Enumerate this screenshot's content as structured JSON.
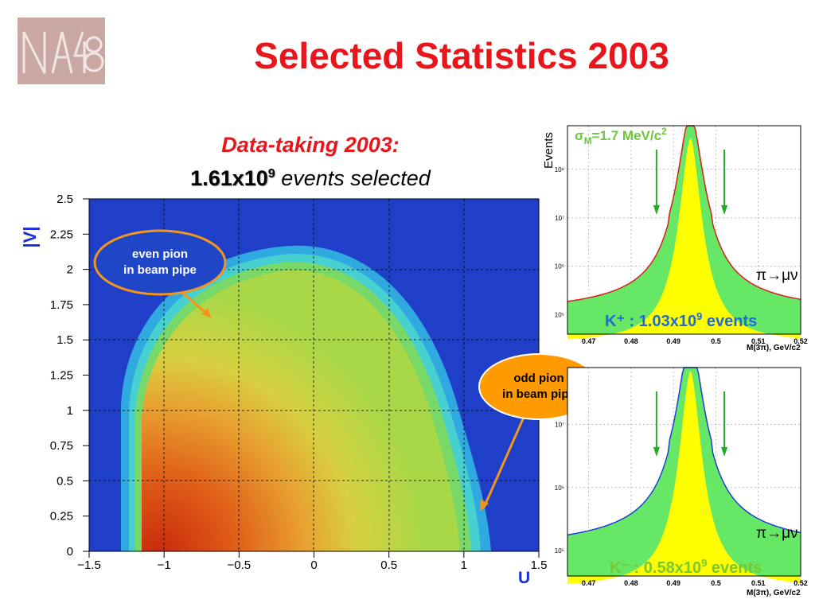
{
  "slide": {
    "title": "Selected Statistics 2003",
    "logo_text": "NA48",
    "subtitle_line1": "Data-taking 2003:",
    "subtitle_count": "1.61x10",
    "subtitle_exponent": "9",
    "subtitle_suffix": " events selected"
  },
  "chart_data": [
    {
      "type": "heatmap",
      "title": "",
      "xlabel": "U",
      "ylabel": "|V|",
      "xlim": [
        -1.5,
        1.5
      ],
      "ylim": [
        0,
        2.5
      ],
      "xticks": [
        "-1.5",
        "-1",
        "-0.5",
        "0",
        "0.5",
        "1",
        "1.5"
      ],
      "yticks": [
        "0",
        "0.25",
        "0.5",
        "0.75",
        "1",
        "1.25",
        "1.5",
        "1.75",
        "2",
        "2.25",
        "2.5"
      ],
      "grid": true,
      "colors": {
        "background": "#1f3fc8",
        "low": "#38bde0",
        "mid": "#9ee04a",
        "high": "#d23010"
      },
      "annotations": [
        {
          "text_line1": "even pion",
          "text_line2": "in beam pipe",
          "points_to": [
            -0.7,
            1.7
          ]
        },
        {
          "text_line1": "odd pion",
          "text_line2": "in beam pipe",
          "points_to": [
            1.13,
            0.3
          ]
        }
      ]
    },
    {
      "type": "area",
      "title": "σM=1.7 MeV/c2",
      "title_main": "σ",
      "title_sub": "M",
      "title_rest": "=1.7 MeV/c",
      "title_sup": "2",
      "ylabel": "Events",
      "xlabel": "M(3π), GeV/c2",
      "xlim": [
        0.465,
        0.52
      ],
      "log_y": true,
      "yticks": [
        "10⁵",
        "10⁶",
        "10⁷",
        "10⁸"
      ],
      "xticks": [
        "0.47",
        "0.48",
        "0.49",
        "0.5",
        "0.51",
        "0.52"
      ],
      "peak_mass": 0.494,
      "cut_markers": [
        0.486,
        0.502
      ],
      "series": [
        {
          "name": "K⁺ : 1.03x10⁹ events",
          "line_color": "#d81e1e",
          "fill": "#ffff00"
        },
        {
          "name": "π→μν",
          "fill": "#66e866"
        }
      ],
      "label_charge": "K⁺ : 1.03x10",
      "label_exponent": "9",
      "label_suffix": " events",
      "label_decay": "π→μν"
    },
    {
      "type": "area",
      "xlabel": "M(3π), GeV/c2",
      "xlim": [
        0.465,
        0.52
      ],
      "log_y": true,
      "yticks": [
        "10⁵",
        "10⁶",
        "10⁷"
      ],
      "xticks": [
        "0.47",
        "0.48",
        "0.49",
        "0.5",
        "0.51",
        "0.52"
      ],
      "peak_mass": 0.494,
      "cut_markers": [
        0.486,
        0.502
      ],
      "series": [
        {
          "name": "K⁻ : 0.58x10⁹ events",
          "line_color": "#1e3ed8",
          "fill": "#ffff00"
        },
        {
          "name": "π→μν",
          "fill": "#66e866"
        }
      ],
      "label_charge": "K⁻ : 0.58x10",
      "label_exponent": "9",
      "label_suffix": " events",
      "label_decay": "π→μν"
    }
  ]
}
